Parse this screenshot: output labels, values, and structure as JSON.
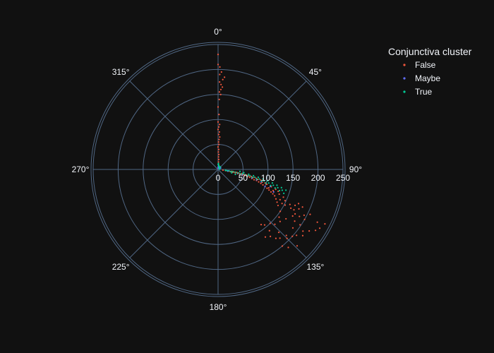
{
  "chart_data": {
    "type": "scatter",
    "subtype": "polar",
    "radial_range": [
      0,
      250
    ],
    "radial_tick_labels": [
      "0",
      "50",
      "100",
      "150",
      "200",
      "250"
    ],
    "angular_tick_labels": [
      "0°",
      "45°",
      "90°",
      "135°",
      "180°",
      "225°",
      "270°",
      "315°"
    ],
    "angular_direction": "clockwise",
    "angular_rotation": "0° at top",
    "grid": true,
    "legend_title": "Conjunctiva cluster",
    "legend_placement": "top-right",
    "colors": {
      "background": "#111111",
      "grid": "#506784",
      "text": "#f2f5fa"
    },
    "series": [
      {
        "name": "False",
        "color": "#EF553B",
        "points": [
          [
            230,
            0
          ],
          [
            210,
            0
          ],
          [
            205,
            1
          ],
          [
            195,
            2
          ],
          [
            190,
            1
          ],
          [
            185,
            4
          ],
          [
            180,
            3
          ],
          [
            175,
            1
          ],
          [
            170,
            2
          ],
          [
            165,
            3
          ],
          [
            160,
            2
          ],
          [
            155,
            1
          ],
          [
            150,
            2
          ],
          [
            140,
            1
          ],
          [
            125,
            0
          ],
          [
            110,
            1
          ],
          [
            95,
            0
          ],
          [
            90,
            2
          ],
          [
            85,
            1
          ],
          [
            80,
            0
          ],
          [
            75,
            2
          ],
          [
            70,
            1
          ],
          [
            65,
            3
          ],
          [
            60,
            2
          ],
          [
            55,
            1
          ],
          [
            50,
            2
          ],
          [
            45,
            0
          ],
          [
            40,
            2
          ],
          [
            35,
            1
          ],
          [
            30,
            3
          ],
          [
            25,
            2
          ],
          [
            20,
            4
          ],
          [
            15,
            3
          ],
          [
            10,
            5
          ],
          [
            8,
            12
          ],
          [
            6,
            20
          ],
          [
            5,
            8
          ],
          [
            240,
            117
          ],
          [
            235,
            120
          ],
          [
            230,
            122
          ],
          [
            225,
            118
          ],
          [
            220,
            124
          ],
          [
            215,
            128
          ],
          [
            210,
            126
          ],
          [
            205,
            130
          ],
          [
            200,
            132
          ],
          [
            195,
            135
          ],
          [
            190,
            134
          ],
          [
            185,
            138
          ],
          [
            180,
            140
          ],
          [
            200,
            140
          ],
          [
            210,
            138
          ],
          [
            220,
            134
          ],
          [
            170,
            142
          ],
          [
            165,
            145
          ],
          [
            160,
            140
          ],
          [
            175,
            136
          ],
          [
            190,
            128
          ],
          [
            185,
            124
          ],
          [
            178,
            120
          ],
          [
            172,
            118
          ],
          [
            168,
            126
          ],
          [
            162,
            130
          ],
          [
            158,
            134
          ],
          [
            150,
            136
          ],
          [
            145,
            140
          ],
          [
            140,
            142
          ],
          [
            155,
            128
          ],
          [
            150,
            124
          ],
          [
            145,
            118
          ],
          [
            140,
            121
          ],
          [
            135,
            119
          ],
          [
            130,
            117
          ],
          [
            125,
            115
          ],
          [
            120,
            114
          ],
          [
            115,
            113
          ],
          [
            110,
            112
          ],
          [
            105,
            111
          ],
          [
            100,
            110
          ],
          [
            95,
            109
          ],
          [
            90,
            108
          ],
          [
            85,
            107
          ],
          [
            80,
            106
          ],
          [
            75,
            106
          ],
          [
            70,
            105
          ],
          [
            65,
            104
          ],
          [
            60,
            104
          ],
          [
            55,
            103
          ],
          [
            50,
            103
          ],
          [
            45,
            102
          ],
          [
            40,
            102
          ],
          [
            35,
            101
          ],
          [
            30,
            101
          ],
          [
            25,
            100
          ],
          [
            20,
            100
          ],
          [
            15,
            99
          ],
          [
            10,
            98
          ],
          [
            160,
            116
          ],
          [
            165,
            118
          ],
          [
            170,
            115
          ],
          [
            175,
            113
          ],
          [
            180,
            116
          ],
          [
            185,
            114
          ],
          [
            195,
            118
          ],
          [
            200,
            120
          ],
          [
            205,
            116
          ],
          [
            198,
            124
          ],
          [
            188,
            120
          ],
          [
            176,
            122
          ],
          [
            152,
            118
          ],
          [
            148,
            115
          ],
          [
            142,
            113
          ],
          [
            138,
            116
          ],
          [
            132,
            112
          ],
          [
            128,
            110
          ],
          [
            122,
            109
          ],
          [
            118,
            111
          ],
          [
            112,
            108
          ],
          [
            108,
            110
          ],
          [
            102,
            107
          ],
          [
            98,
            106
          ],
          [
            92,
            106
          ],
          [
            88,
            104
          ],
          [
            82,
            104
          ],
          [
            78,
            103
          ],
          [
            72,
            103
          ],
          [
            68,
            102
          ],
          [
            62,
            102
          ],
          [
            58,
            101
          ],
          [
            52,
            101
          ],
          [
            48,
            100
          ],
          [
            42,
            100
          ],
          [
            38,
            99
          ],
          [
            32,
            99
          ],
          [
            28,
            98
          ],
          [
            22,
            98
          ]
        ]
      },
      {
        "name": "Maybe",
        "color": "#636EFA",
        "points": [
          [
            5,
            2
          ],
          [
            8,
            10
          ],
          [
            4,
            30
          ],
          [
            6,
            60
          ],
          [
            3,
            5
          ],
          [
            120,
            112
          ],
          [
            100,
            110
          ],
          [
            80,
            105
          ],
          [
            60,
            103
          ],
          [
            40,
            101
          ],
          [
            20,
            99
          ],
          [
            110,
            108
          ],
          [
            90,
            106
          ],
          [
            70,
            104
          ],
          [
            50,
            102
          ]
        ]
      },
      {
        "name": "True",
        "color": "#00CC96",
        "points": [
          [
            10,
            1
          ],
          [
            12,
            4
          ],
          [
            8,
            8
          ],
          [
            6,
            15
          ],
          [
            5,
            25
          ],
          [
            7,
            40
          ],
          [
            4,
            60
          ],
          [
            3,
            80
          ],
          [
            15,
            96
          ],
          [
            18,
            98
          ],
          [
            22,
            97
          ],
          [
            26,
            99
          ],
          [
            30,
            98
          ],
          [
            35,
            99
          ],
          [
            40,
            100
          ],
          [
            45,
            101
          ],
          [
            50,
            100
          ],
          [
            55,
            101
          ],
          [
            60,
            102
          ],
          [
            65,
            101
          ],
          [
            70,
            103
          ],
          [
            75,
            102
          ],
          [
            80,
            104
          ],
          [
            85,
            103
          ],
          [
            90,
            105
          ],
          [
            95,
            104
          ],
          [
            100,
            106
          ],
          [
            105,
            105
          ],
          [
            110,
            107
          ],
          [
            115,
            106
          ],
          [
            120,
            108
          ],
          [
            125,
            107
          ],
          [
            130,
            109
          ],
          [
            135,
            108
          ],
          [
            140,
            110
          ],
          [
            28,
            104
          ],
          [
            36,
            106
          ],
          [
            44,
            95
          ],
          [
            52,
            97
          ],
          [
            62,
            99
          ],
          [
            72,
            100
          ],
          [
            82,
            101
          ],
          [
            92,
            102
          ],
          [
            102,
            103
          ],
          [
            112,
            104
          ],
          [
            122,
            105
          ],
          [
            132,
            106
          ],
          [
            142,
            107
          ]
        ]
      }
    ]
  }
}
